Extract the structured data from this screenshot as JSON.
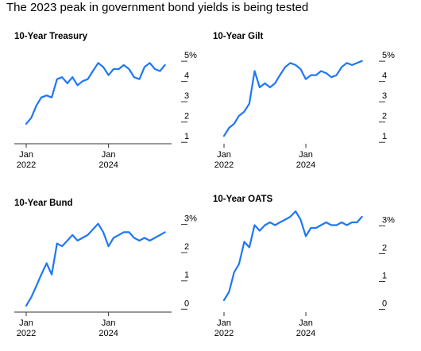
{
  "headline": "The 2023 peak in government bond yields is being tested",
  "chart_data": [
    {
      "type": "line",
      "title": "10-Year Treasury",
      "color": "#1f77f4",
      "ylim": [
        0.5,
        5.2
      ],
      "yticks": [
        1,
        2,
        3,
        4,
        5
      ],
      "ytick_labels": [
        "1",
        "2",
        "3",
        "4",
        "5%"
      ],
      "xlim": [
        "2022-01-01",
        "2025-06-15"
      ],
      "xtick_dates": [
        "2022-01-01",
        "2024-01-01"
      ],
      "xtick_labels": [
        [
          "Jan",
          "2022"
        ],
        [
          "Jan",
          "2024"
        ]
      ],
      "series": [
        {
          "x": [
            "2022-01-01",
            "2022-02-15",
            "2022-04-01",
            "2022-05-15",
            "2022-07-01",
            "2022-08-15",
            "2022-10-01",
            "2022-11-15",
            "2023-01-01",
            "2023-02-15",
            "2023-04-01",
            "2023-05-15",
            "2023-07-01",
            "2023-08-15",
            "2023-10-01",
            "2023-11-15",
            "2024-01-01",
            "2024-02-15",
            "2024-04-01",
            "2024-05-15",
            "2024-07-01",
            "2024-08-15",
            "2024-10-01",
            "2024-11-15",
            "2025-01-01",
            "2025-02-15",
            "2025-04-01",
            "2025-05-15"
          ],
          "values": [
            1.6,
            1.9,
            2.5,
            2.9,
            3.0,
            2.9,
            3.8,
            3.9,
            3.6,
            3.9,
            3.5,
            3.7,
            3.8,
            4.2,
            4.6,
            4.4,
            4.0,
            4.3,
            4.3,
            4.5,
            4.3,
            3.9,
            3.8,
            4.4,
            4.6,
            4.3,
            4.2,
            4.5
          ]
        }
      ]
    },
    {
      "type": "line",
      "title": "10-Year Gilt",
      "color": "#1f77f4",
      "ylim": [
        0.5,
        5.2
      ],
      "yticks": [
        1,
        2,
        3,
        4,
        5
      ],
      "ytick_labels": [
        "1",
        "2",
        "3",
        "4",
        "5%"
      ],
      "xlim": [
        "2022-01-01",
        "2025-06-15"
      ],
      "xtick_dates": [
        "2022-01-01",
        "2024-01-01"
      ],
      "xtick_labels": [
        [
          "Jan",
          "2022"
        ],
        [
          "Jan",
          "2024"
        ]
      ],
      "series": [
        {
          "x": [
            "2022-01-01",
            "2022-02-15",
            "2022-04-01",
            "2022-05-15",
            "2022-07-01",
            "2022-08-15",
            "2022-10-01",
            "2022-11-15",
            "2023-01-01",
            "2023-02-15",
            "2023-04-01",
            "2023-05-15",
            "2023-07-01",
            "2023-08-15",
            "2023-10-01",
            "2023-11-15",
            "2024-01-01",
            "2024-02-15",
            "2024-04-01",
            "2024-05-15",
            "2024-07-01",
            "2024-08-15",
            "2024-10-01",
            "2024-11-15",
            "2025-01-01",
            "2025-02-15",
            "2025-04-01",
            "2025-05-15"
          ],
          "values": [
            1.0,
            1.4,
            1.6,
            2.0,
            2.2,
            2.6,
            4.2,
            3.4,
            3.6,
            3.4,
            3.6,
            4.0,
            4.4,
            4.6,
            4.5,
            4.3,
            3.8,
            4.0,
            4.0,
            4.2,
            4.1,
            3.9,
            4.0,
            4.4,
            4.6,
            4.5,
            4.6,
            4.7
          ]
        }
      ]
    },
    {
      "type": "line",
      "title": "10-Year Bund",
      "color": "#1f77f4",
      "ylim": [
        -0.3,
        3.1
      ],
      "yticks": [
        0,
        1,
        2,
        3
      ],
      "ytick_labels": [
        "0",
        "1",
        "2",
        "3%"
      ],
      "xlim": [
        "2022-01-01",
        "2025-06-15"
      ],
      "xtick_dates": [
        "2022-01-01",
        "2024-01-01"
      ],
      "xtick_labels": [
        [
          "Jan",
          "2022"
        ],
        [
          "Jan",
          "2024"
        ]
      ],
      "series": [
        {
          "x": [
            "2022-01-01",
            "2022-02-15",
            "2022-04-01",
            "2022-05-15",
            "2022-07-01",
            "2022-08-15",
            "2022-10-01",
            "2022-11-15",
            "2023-01-01",
            "2023-02-15",
            "2023-04-01",
            "2023-05-15",
            "2023-07-01",
            "2023-08-15",
            "2023-10-01",
            "2023-11-15",
            "2024-01-01",
            "2024-02-15",
            "2024-04-01",
            "2024-05-15",
            "2024-07-01",
            "2024-08-15",
            "2024-10-01",
            "2024-11-15",
            "2025-01-01",
            "2025-02-15",
            "2025-04-01",
            "2025-05-15"
          ],
          "values": [
            -0.1,
            0.2,
            0.6,
            1.0,
            1.4,
            1.0,
            2.1,
            2.0,
            2.2,
            2.4,
            2.2,
            2.3,
            2.4,
            2.6,
            2.8,
            2.5,
            2.0,
            2.3,
            2.4,
            2.5,
            2.5,
            2.3,
            2.2,
            2.3,
            2.2,
            2.3,
            2.4,
            2.5
          ]
        }
      ]
    },
    {
      "type": "line",
      "title": "10-Year OATS",
      "color": "#1f77f4",
      "ylim": [
        -0.3,
        3.3
      ],
      "yticks": [
        0,
        1,
        2,
        3
      ],
      "ytick_labels": [
        "0",
        "1",
        "2",
        "3%"
      ],
      "xlim": [
        "2022-01-01",
        "2025-06-15"
      ],
      "xtick_dates": [
        "2022-01-01",
        "2024-01-01"
      ],
      "xtick_labels": [
        [
          "Jan",
          "2022"
        ],
        [
          "Jan",
          "2024"
        ]
      ],
      "series": [
        {
          "x": [
            "2022-01-01",
            "2022-02-15",
            "2022-04-01",
            "2022-05-15",
            "2022-07-01",
            "2022-08-15",
            "2022-10-01",
            "2022-11-15",
            "2023-01-01",
            "2023-02-15",
            "2023-04-01",
            "2023-05-15",
            "2023-07-01",
            "2023-08-15",
            "2023-10-01",
            "2023-11-15",
            "2024-01-01",
            "2024-02-15",
            "2024-04-01",
            "2024-05-15",
            "2024-07-01",
            "2024-08-15",
            "2024-10-01",
            "2024-11-15",
            "2025-01-01",
            "2025-02-15",
            "2025-04-01",
            "2025-05-15"
          ],
          "values": [
            0.1,
            0.4,
            1.1,
            1.4,
            2.2,
            2.0,
            2.8,
            2.6,
            2.8,
            2.9,
            2.8,
            2.9,
            3.0,
            3.1,
            3.3,
            3.0,
            2.4,
            2.7,
            2.7,
            2.8,
            2.9,
            2.8,
            2.8,
            2.9,
            2.8,
            2.9,
            2.9,
            3.1
          ]
        }
      ]
    }
  ]
}
